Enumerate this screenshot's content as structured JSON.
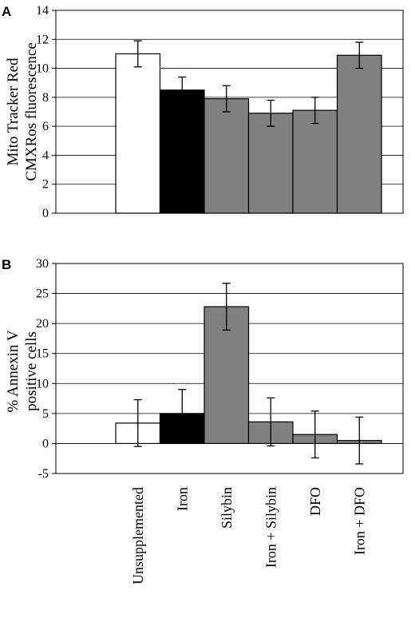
{
  "panels": [
    {
      "letter": "A",
      "ylabel_lines": [
        "Mito Tracker Red",
        "CMXRos fluorescence"
      ]
    },
    {
      "letter": "B",
      "ylabel_lines": [
        "% Annexin V",
        "positive cells"
      ]
    }
  ],
  "colors": {
    "unsupplemented": "#ffffff",
    "iron": "#000000",
    "treatment": "#808080",
    "grid": "#000000"
  },
  "chart_data": [
    {
      "type": "bar",
      "categories": [
        "Unsupplemented",
        "Iron",
        "Silybin",
        "Iron + Silybin",
        "DFO",
        "Iron + DFO"
      ],
      "values": [
        11.0,
        8.5,
        7.9,
        6.9,
        7.1,
        10.9
      ],
      "errors": [
        0.9,
        0.9,
        0.9,
        0.9,
        0.9,
        0.9
      ],
      "bar_colors": [
        "#ffffff",
        "#000000",
        "#808080",
        "#808080",
        "#808080",
        "#808080"
      ],
      "ylim": [
        0,
        14
      ],
      "yticks": [
        0,
        2,
        4,
        6,
        8,
        10,
        12,
        14
      ],
      "grid": true,
      "show_category_labels": false
    },
    {
      "type": "bar",
      "categories": [
        "Unsupplemented",
        "Iron",
        "Silybin",
        "Iron + Silybin",
        "DFO",
        "Iron + DFO"
      ],
      "values": [
        3.4,
        5.0,
        22.8,
        3.6,
        1.5,
        0.5
      ],
      "errors": [
        3.9,
        4.0,
        3.9,
        4.0,
        3.9,
        3.9
      ],
      "bar_colors": [
        "#ffffff",
        "#000000",
        "#808080",
        "#808080",
        "#808080",
        "#808080"
      ],
      "ylim": [
        -5,
        30
      ],
      "yticks": [
        -5,
        0,
        5,
        10,
        15,
        20,
        25,
        30
      ],
      "grid": true,
      "show_category_labels": true
    }
  ]
}
